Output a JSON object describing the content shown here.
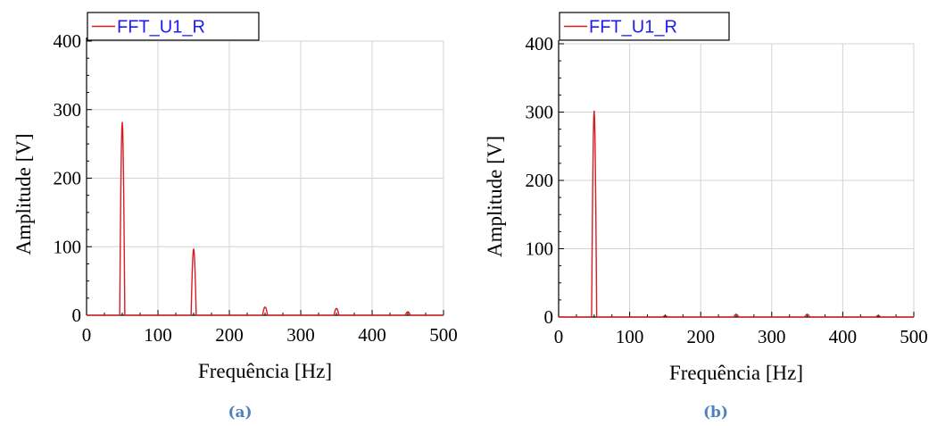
{
  "colors": {
    "series": "#d41e24",
    "legend_text": "#1d1df0",
    "caption": "#4f81bd",
    "grid": "#d3d3d3"
  },
  "chart_data": [
    {
      "type": "line",
      "caption": "(a)",
      "legend": {
        "entries": [
          "FFT_U1_R"
        ],
        "placement": "top-left"
      },
      "xlabel": "Frequência [Hz]",
      "ylabel": "Amplitude [V]",
      "xlim": [
        0,
        500
      ],
      "ylim": [
        0,
        400
      ],
      "xticks": [
        0,
        100,
        200,
        300,
        400,
        500
      ],
      "yticks": [
        0,
        100,
        200,
        300,
        400
      ],
      "grid": true,
      "series": [
        {
          "name": "FFT_U1_R",
          "color": "#d41e24",
          "peaks": [
            {
              "x": 50,
              "y": 282
            },
            {
              "x": 150,
              "y": 97
            },
            {
              "x": 250,
              "y": 12
            },
            {
              "x": 350,
              "y": 10
            },
            {
              "x": 450,
              "y": 5
            }
          ]
        }
      ]
    },
    {
      "type": "line",
      "caption": "(b)",
      "legend": {
        "entries": [
          "FFT_U1_R"
        ],
        "placement": "top-left"
      },
      "xlabel": "Frequência [Hz]",
      "ylabel": "Amplitude [V]",
      "xlim": [
        0,
        500
      ],
      "ylim": [
        0,
        400
      ],
      "xticks": [
        0,
        100,
        200,
        300,
        400,
        500
      ],
      "yticks": [
        0,
        100,
        200,
        300,
        400
      ],
      "grid": true,
      "series": [
        {
          "name": "FFT_U1_R",
          "color": "#d41e24",
          "peaks": [
            {
              "x": 50,
              "y": 302
            },
            {
              "x": 150,
              "y": 2
            },
            {
              "x": 250,
              "y": 4
            },
            {
              "x": 350,
              "y": 4
            },
            {
              "x": 450,
              "y": 2
            }
          ]
        }
      ]
    }
  ]
}
